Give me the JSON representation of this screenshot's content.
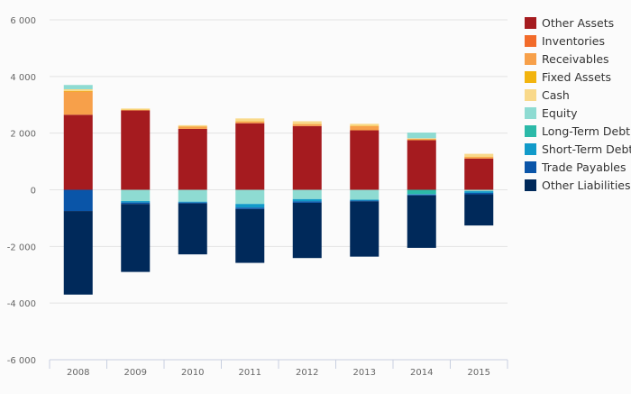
{
  "chart_data": {
    "type": "bar",
    "stacked": true,
    "categories": [
      "2008",
      "2009",
      "2010",
      "2011",
      "2012",
      "2013",
      "2014",
      "2015"
    ],
    "ylim": [
      -6000,
      6000
    ],
    "yticks": [
      6000,
      4000,
      2000,
      0,
      -2000,
      -4000,
      -6000
    ],
    "ytick_labels": [
      "6 000",
      "4 000",
      "2 000",
      "0",
      "-2 000",
      "-4 000",
      "-6 000"
    ],
    "grid": true,
    "legend_position": "right",
    "series": [
      {
        "name": "Other Assets",
        "color": "#a51b1f",
        "values": [
          2650,
          2800,
          2150,
          2350,
          2250,
          2100,
          1750,
          1100
        ]
      },
      {
        "name": "Inventories",
        "color": "#f26b2a",
        "values": [
          0,
          0,
          0,
          0,
          0,
          0,
          0,
          0
        ]
      },
      {
        "name": "Receivables",
        "color": "#f7a04a",
        "values": [
          820,
          20,
          80,
          60,
          70,
          150,
          40,
          60
        ]
      },
      {
        "name": "Fixed Assets",
        "color": "#f2b40e",
        "values": [
          20,
          10,
          10,
          10,
          10,
          10,
          10,
          10
        ]
      },
      {
        "name": "Cash",
        "color": "#f9d98a",
        "values": [
          60,
          40,
          40,
          100,
          90,
          70,
          20,
          100
        ]
      },
      {
        "name": "Equity",
        "color": "#8edbd2",
        "values": [
          150,
          -400,
          -420,
          -500,
          -330,
          -350,
          200,
          -50
        ]
      },
      {
        "name": "Long-Term Debt",
        "color": "#2bb9a8",
        "values": [
          0,
          0,
          0,
          0,
          0,
          0,
          -150,
          0
        ]
      },
      {
        "name": "Short-Term Debt",
        "color": "#119ac9",
        "values": [
          0,
          -50,
          -30,
          -130,
          -80,
          -30,
          -20,
          -60
        ]
      },
      {
        "name": "Trade Payables",
        "color": "#0a55a8",
        "values": [
          -750,
          -50,
          -30,
          -50,
          -50,
          -30,
          -30,
          -50
        ]
      },
      {
        "name": "Other Liabilities",
        "color": "#00295a",
        "values": [
          -2950,
          -2400,
          -1800,
          -1900,
          -1950,
          -1950,
          -1850,
          -1100
        ]
      }
    ]
  }
}
